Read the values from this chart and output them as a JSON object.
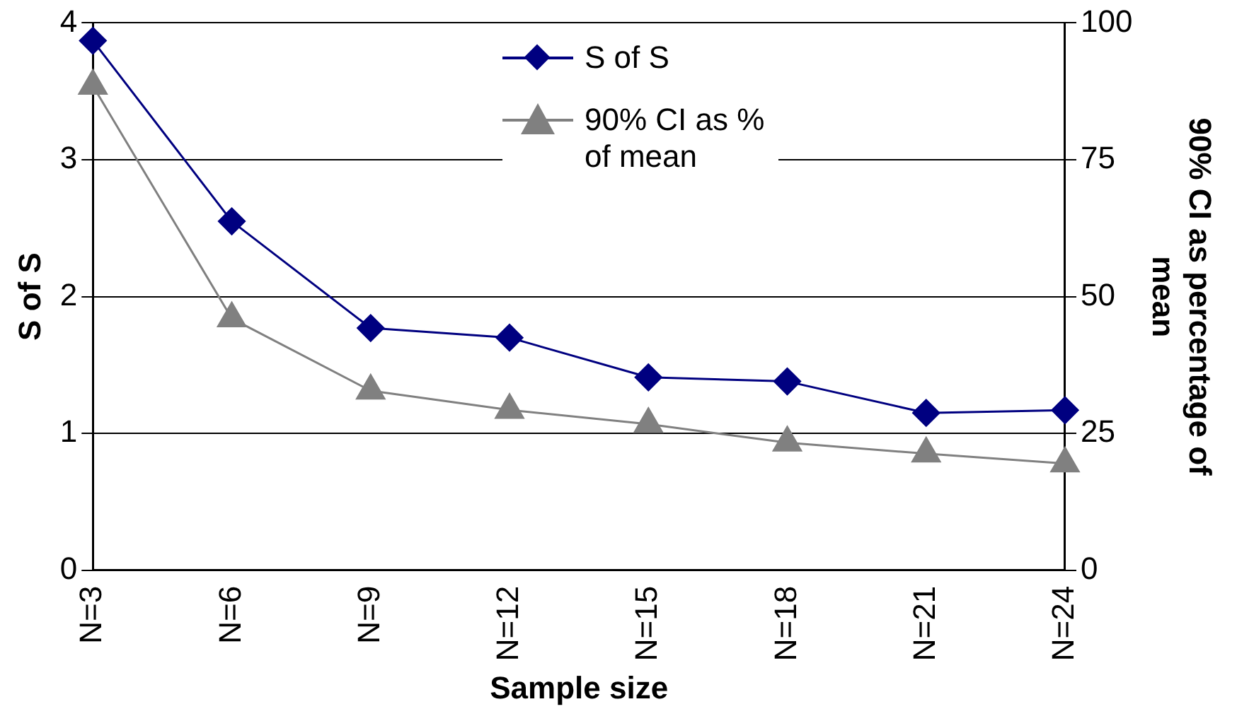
{
  "chart_data": {
    "type": "line",
    "xlabel": "Sample size",
    "ylabel": "S of S",
    "y2label": "90% CI as percentage of mean",
    "categories": [
      "N=3",
      "N=6",
      "N=9",
      "N=12",
      "N=15",
      "N=18",
      "N=21",
      "N=24"
    ],
    "series": [
      {
        "name": "S of S",
        "color": "#000080",
        "marker": "diamond",
        "values": [
          3.87,
          2.55,
          1.77,
          1.7,
          1.41,
          1.38,
          1.15,
          1.17
        ]
      },
      {
        "name": "90% CI as % of mean",
        "color": "#808080",
        "marker": "triangle",
        "axis": "y2",
        "values": [
          88.5,
          46,
          32.8,
          29.3,
          26.7,
          23.3,
          21.3,
          19.5
        ]
      }
    ],
    "ylim": [
      0,
      4
    ],
    "yticks": [
      0,
      1,
      2,
      3,
      4
    ],
    "y2lim": [
      0,
      100
    ],
    "y2ticks": [
      0,
      25,
      50,
      75,
      100
    ],
    "grid": "y",
    "legend": "top",
    "line_style": "solid"
  }
}
